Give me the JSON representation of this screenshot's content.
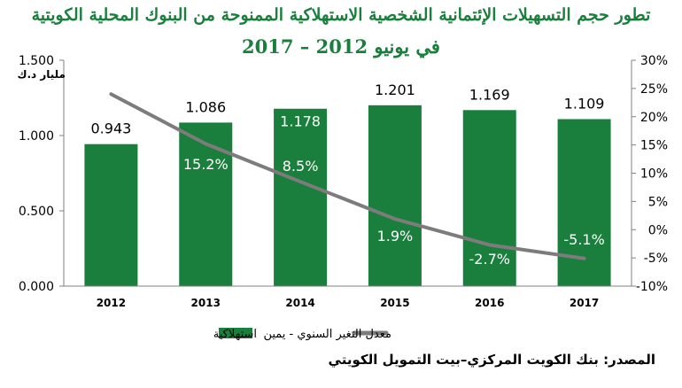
{
  "chart_data": {
    "type": "bar",
    "title": "تطور حجم التسهيلات الإئتمانية الشخصية الاستهلاكية الممنوحة من البنوك المحلية الكويتية",
    "subtitle": "في يونيو 2012 – 2017",
    "unit_label": "مليار د.ك",
    "categories": [
      "2012",
      "2013",
      "2014",
      "2015",
      "2016",
      "2017"
    ],
    "left_axis": {
      "ticks": [
        "0.000",
        "0.500",
        "1.000",
        "1.500"
      ],
      "ylim": [
        0,
        1.5
      ]
    },
    "right_axis": {
      "ticks": [
        "-10%",
        "-5%",
        "0%",
        "5%",
        "10%",
        "15%",
        "20%",
        "25%",
        "30%"
      ],
      "ylim": [
        -10,
        30
      ]
    },
    "series": [
      {
        "name": "استهلاكية",
        "kind": "bar",
        "axis": "left",
        "color": "#1a7f3c",
        "values": [
          0.943,
          1.086,
          1.178,
          1.201,
          1.169,
          1.109
        ],
        "labels": [
          "0.943",
          "1.086",
          "1.178",
          "1.201",
          "1.169",
          "1.109"
        ]
      },
      {
        "name": "معدل التغير السنوي - يمين",
        "kind": "line",
        "axis": "right",
        "color": "#7d7b7b",
        "values": [
          24.0,
          15.2,
          8.5,
          1.9,
          -2.7,
          -5.1
        ],
        "labels": [
          "",
          "15.2%",
          "8.5%",
          "1.9%",
          "-2.7%",
          "-5.1%"
        ]
      }
    ],
    "legend_position": "bottom",
    "grid": false
  },
  "source_note": "المصدر: بنك الكويت المركزي–بيت التمويل الكويتي"
}
